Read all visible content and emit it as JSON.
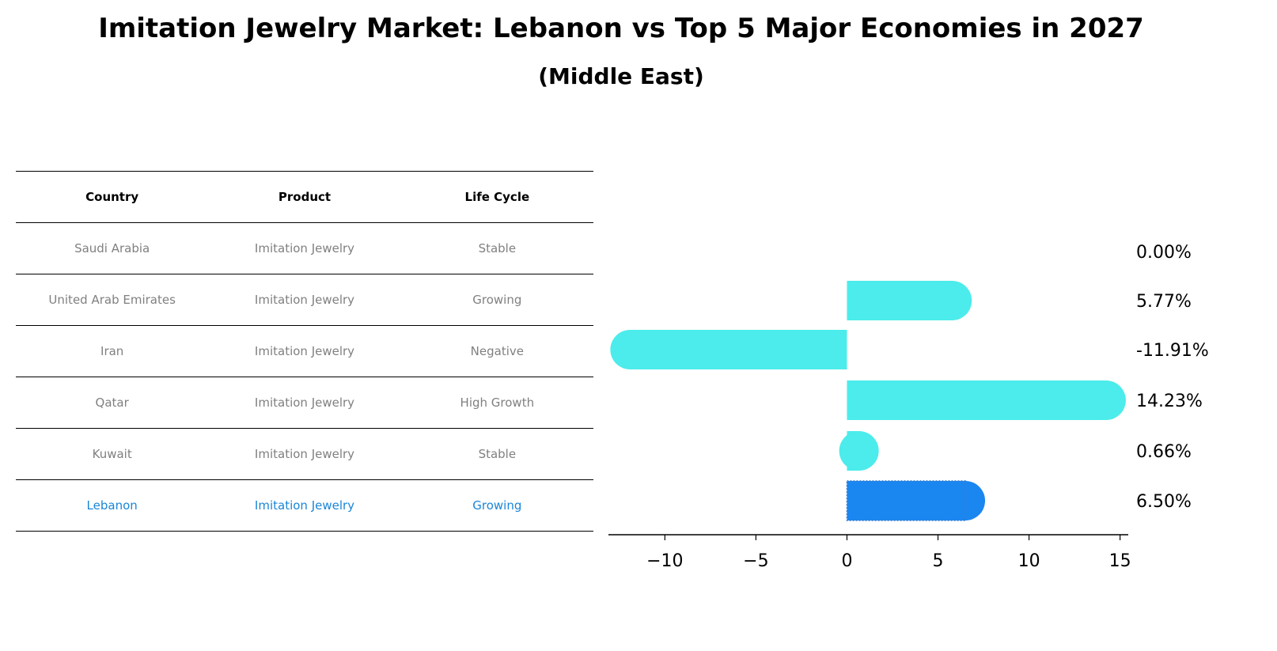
{
  "title": "Imitation Jewelry Market: Lebanon vs Top 5 Major Economies in 2027",
  "subtitle": "(Middle East)",
  "table": {
    "headers": [
      "Country",
      "Product",
      "Life Cycle"
    ],
    "rows": [
      [
        "Saudi Arabia",
        "Imitation Jewelry",
        "Stable"
      ],
      [
        "United Arab Emirates",
        "Imitation Jewelry",
        "Growing"
      ],
      [
        "Iran",
        "Imitation Jewelry",
        "Negative"
      ],
      [
        "Qatar",
        "Imitation Jewelry",
        "High Growth"
      ],
      [
        "Kuwait",
        "Imitation Jewelry",
        "Stable"
      ],
      [
        "Lebanon",
        "Imitation Jewelry",
        "Growing"
      ]
    ]
  },
  "chart_data": {
    "type": "bar",
    "orientation": "horizontal",
    "categories": [
      "Saudi Arabia",
      "United Arab Emirates",
      "Iran",
      "Qatar",
      "Kuwait",
      "Lebanon"
    ],
    "values": [
      0.0,
      5.77,
      -11.91,
      14.23,
      0.66,
      6.5
    ],
    "labels": [
      "0.00%",
      "5.77%",
      "-11.91%",
      "14.23%",
      "0.66%",
      "6.50%"
    ],
    "highlight": "Lebanon",
    "xlim": [
      -13.1,
      15.45
    ],
    "xticks": [
      -10,
      -5,
      0,
      5,
      10,
      15
    ],
    "xtick_labels": [
      "−10",
      "−5",
      "0",
      "5",
      "10",
      "15"
    ],
    "colors": {
      "default": "#4beceb",
      "highlight": "#1a86f0"
    }
  }
}
